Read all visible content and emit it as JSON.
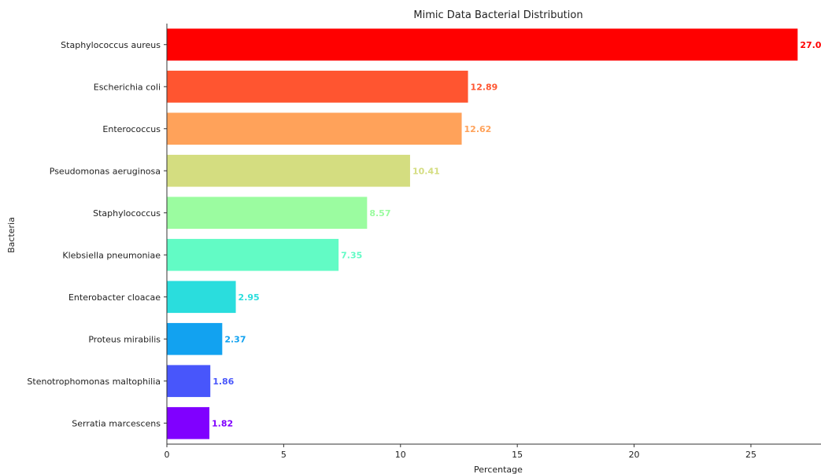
{
  "chart_data": {
    "type": "bar",
    "orientation": "horizontal",
    "title": "Mimic Data Bacterial Distribution",
    "xlabel": "Percentage",
    "ylabel": "Bacteria",
    "xlim": [
      0,
      28
    ],
    "xticks": [
      0,
      5,
      10,
      15,
      20,
      25
    ],
    "grid": false,
    "categories": [
      "Staphylococcus aureus",
      "Escherichia coli",
      "Enterococcus",
      "Pseudomonas aeruginosa",
      "Staphylococcus",
      "Klebsiella pneumoniae",
      "Enterobacter cloacae",
      "Proteus mirabilis",
      "Stenotrophomonas maltophilia",
      "Serratia marcescens"
    ],
    "values": [
      27.0,
      12.89,
      12.62,
      10.41,
      8.57,
      7.35,
      2.95,
      2.37,
      1.86,
      1.82
    ],
    "value_labels": [
      "27.0",
      "12.89",
      "12.62",
      "10.41",
      "8.57",
      "7.35",
      "2.95",
      "2.37",
      "1.86",
      "1.82"
    ],
    "colors": [
      "#ff0000",
      "#ff5530",
      "#ffa25a",
      "#d4dd80",
      "#9bfca0",
      "#62fbc5",
      "#2adddd",
      "#12a2f0",
      "#4856fb",
      "#8000ff"
    ]
  }
}
